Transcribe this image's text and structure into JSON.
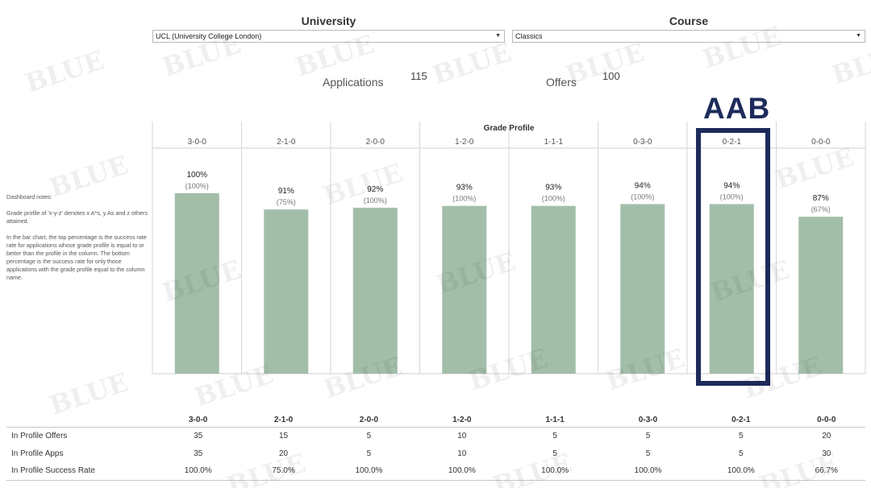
{
  "filters": {
    "university_title": "University",
    "university_value": "UCL (University College London)",
    "course_title": "Course",
    "course_value": "Classics"
  },
  "kpis": {
    "applications_label": "Applications",
    "applications_value": "115",
    "offers_label": "Offers",
    "offers_value": "100"
  },
  "notes": {
    "heading": "Dashboard notes:",
    "p1": "Grade profile of 'x-y-z' denotes x A*s, y As and z others attained.",
    "p2": "In the bar chart, the top percentage is the success rate rate for applications whose grade profile is equal to or better than the profile in the column. The bottom percentage is the success rate for only those applications with the grade profile equal to the column name."
  },
  "annotation": {
    "label": "AAB",
    "highlight_category": "0-2-1"
  },
  "watermark": "BLUE",
  "chart_data": {
    "type": "bar",
    "title": "Grade Profile",
    "categories": [
      "3-0-0",
      "2-1-0",
      "2-0-0",
      "1-2-0",
      "1-1-1",
      "0-3-0",
      "0-2-1",
      "0-0-0"
    ],
    "values": [
      100,
      91,
      92,
      93,
      93,
      94,
      94,
      87
    ],
    "top_labels": [
      "100%",
      "91%",
      "92%",
      "93%",
      "93%",
      "94%",
      "94%",
      "87%"
    ],
    "bottom_labels": [
      "(100%)",
      "(75%)",
      "(100%)",
      "(100%)",
      "(100%)",
      "(100%)",
      "(100%)",
      "(67%)"
    ],
    "ylim": [
      0,
      125
    ],
    "bar_color": "#a2bea9",
    "grid": false
  },
  "table": {
    "headers": [
      "3-0-0",
      "2-1-0",
      "2-0-0",
      "1-2-0",
      "1-1-1",
      "0-3-0",
      "0-2-1",
      "0-0-0"
    ],
    "rows": [
      {
        "label": "In Profile Offers",
        "values": [
          "35",
          "15",
          "5",
          "10",
          "5",
          "5",
          "5",
          "20"
        ]
      },
      {
        "label": "In Profile Apps",
        "values": [
          "35",
          "20",
          "5",
          "10",
          "5",
          "5",
          "5",
          "30"
        ]
      },
      {
        "label": "In Profile Success Rate",
        "values": [
          "100.0%",
          "75.0%",
          "100.0%",
          "100.0%",
          "100.0%",
          "100.0%",
          "100.0%",
          "66.7%"
        ]
      }
    ]
  }
}
